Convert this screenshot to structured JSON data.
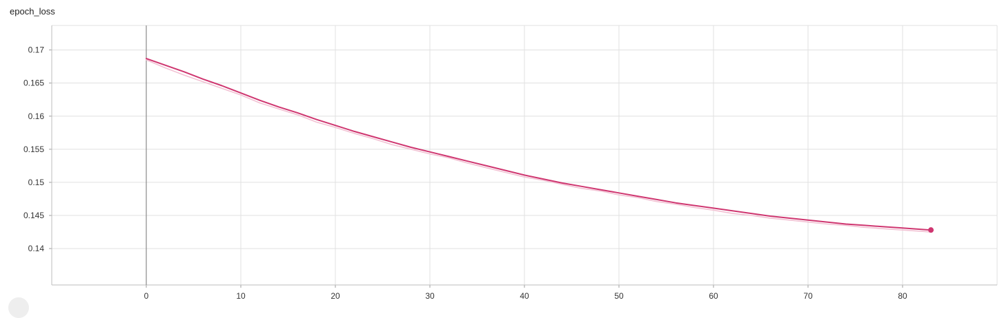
{
  "card": {
    "title": "epoch_loss"
  },
  "chart_data": {
    "type": "line",
    "title": "epoch_loss",
    "xlabel": "",
    "ylabel": "",
    "xlim": [
      -10,
      90
    ],
    "ylim": [
      0.1345,
      0.1737
    ],
    "x_ticks": [
      0,
      10,
      20,
      30,
      40,
      50,
      60,
      70,
      80
    ],
    "y_ticks": [
      0.14,
      0.145,
      0.15,
      0.155,
      0.16,
      0.165,
      0.17
    ],
    "grid": true,
    "legend": "none",
    "colors": {
      "smoothed": "#cf3670",
      "raw": "#f2c1d3",
      "grid": "#e0e0e0",
      "axis": "#9e9e9e"
    },
    "series": [
      {
        "role": "smoothed",
        "x": [
          0,
          2,
          4,
          6,
          8,
          10,
          12,
          14,
          16,
          18,
          20,
          22,
          24,
          26,
          28,
          30,
          32,
          34,
          36,
          38,
          40,
          42,
          44,
          46,
          48,
          50,
          52,
          54,
          56,
          58,
          60,
          62,
          64,
          66,
          68,
          70,
          72,
          74,
          76,
          78,
          80,
          82,
          83
        ],
        "y": [
          0.1687,
          0.1677,
          0.1667,
          0.1656,
          0.1646,
          0.1635,
          0.1624,
          0.1614,
          0.1605,
          0.1595,
          0.1586,
          0.1577,
          0.1569,
          0.1561,
          0.1553,
          0.1546,
          0.1539,
          0.1532,
          0.1525,
          0.1518,
          0.1511,
          0.1505,
          0.1499,
          0.1494,
          0.1489,
          0.1484,
          0.1479,
          0.1474,
          0.1469,
          0.1465,
          0.1461,
          0.1457,
          0.1453,
          0.1449,
          0.1446,
          0.1443,
          0.144,
          0.1437,
          0.1435,
          0.1433,
          0.1431,
          0.1429,
          0.1428
        ]
      },
      {
        "role": "raw",
        "x": [
          0,
          2,
          4,
          6,
          8,
          10,
          12,
          14,
          16,
          18,
          20,
          22,
          24,
          26,
          28,
          30,
          32,
          34,
          36,
          38,
          40,
          42,
          44,
          46,
          48,
          50,
          52,
          54,
          56,
          58,
          60,
          62,
          64,
          66,
          68,
          70,
          72,
          74,
          76,
          78,
          80,
          82,
          83
        ],
        "y": [
          0.1685,
          0.1673,
          0.1662,
          0.1652,
          0.1642,
          0.1632,
          0.162,
          0.1611,
          0.1602,
          0.1591,
          0.1583,
          0.1574,
          0.1566,
          0.1557,
          0.155,
          0.1543,
          0.1537,
          0.1529,
          0.1522,
          0.1515,
          0.1508,
          0.1503,
          0.1497,
          0.1491,
          0.1487,
          0.1481,
          0.1477,
          0.1471,
          0.1467,
          0.1462,
          0.1458,
          0.1453,
          0.145,
          0.1446,
          0.1443,
          0.144,
          0.1437,
          0.1435,
          0.1432,
          0.143,
          0.1428,
          0.1426,
          0.1425
        ]
      }
    ]
  }
}
